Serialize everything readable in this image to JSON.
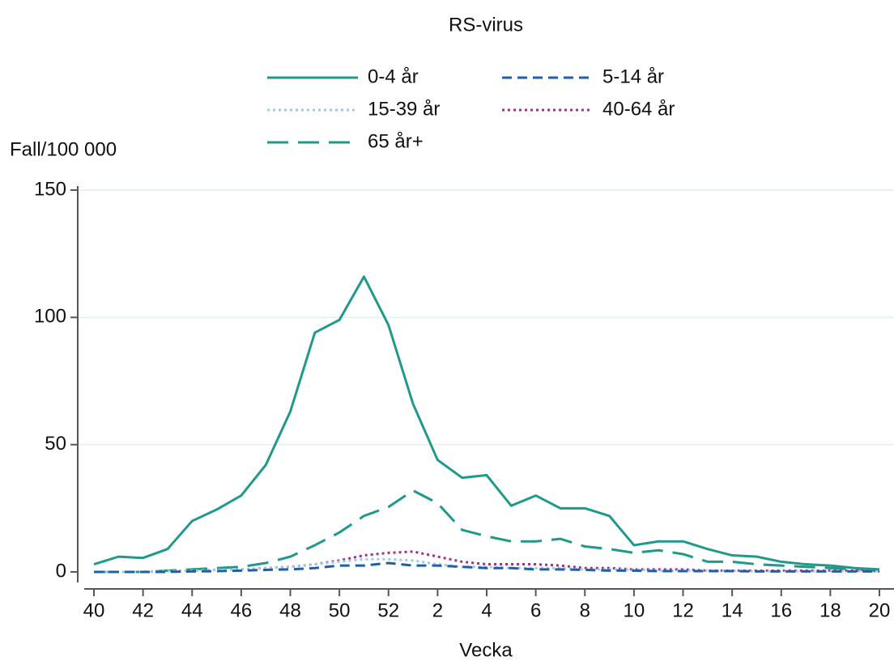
{
  "chart_data": {
    "type": "line",
    "title": "RS-virus",
    "y_label": "Fall/100 000",
    "x_label": "Vecka",
    "categories": [
      "40",
      null,
      "42",
      null,
      "44",
      null,
      "46",
      null,
      "48",
      null,
      "50",
      null,
      "52",
      null,
      "2",
      null,
      "4",
      null,
      "6",
      null,
      "8",
      null,
      "10",
      null,
      "12",
      null,
      "14",
      null,
      "16",
      null,
      "18",
      null,
      "20"
    ],
    "series": [
      {
        "name": "0-4 år",
        "color": "#1f9a8a",
        "line_style": "solid",
        "values": [
          3,
          6,
          5.5,
          9,
          20,
          24.5,
          30,
          42,
          63,
          94,
          99,
          116,
          97,
          66,
          44,
          37,
          38,
          26,
          30,
          25,
          25,
          22,
          10.5,
          12,
          12,
          9,
          6.5,
          6,
          4,
          3,
          2.5,
          1.5,
          1
        ]
      },
      {
        "name": "5-14 år",
        "color": "#1f5fa8",
        "line_style": "dashed",
        "values": [
          0,
          0,
          0,
          0,
          0.2,
          0.3,
          0.5,
          0.8,
          1,
          1.5,
          2.5,
          2.5,
          3.5,
          2.5,
          2.5,
          2,
          1.5,
          1.5,
          1,
          1,
          0.8,
          0.5,
          0.5,
          0.3,
          0.3,
          0.3,
          0.3,
          0.2,
          0.2,
          0.2,
          0.2,
          0.2,
          0.2
        ]
      },
      {
        "name": "15-39 år",
        "color": "#9ecae1",
        "line_style": "dotted",
        "values": [
          0,
          0,
          0,
          0.3,
          0.5,
          0.8,
          1,
          1.5,
          2,
          3,
          4,
          5,
          5,
          4.5,
          3,
          2,
          2,
          1.5,
          1.5,
          1.5,
          1,
          1,
          1,
          0.5,
          0.5,
          0.5,
          0.5,
          0.3,
          0.3,
          0.3,
          0.3,
          0.3,
          0.3
        ]
      },
      {
        "name": "40-64 år",
        "color": "#a0308f",
        "line_style": "dotted",
        "values": [
          0,
          0,
          0,
          0.3,
          0.5,
          0.8,
          1,
          1.5,
          2,
          3,
          4.5,
          6.5,
          7.5,
          8,
          6,
          4,
          3,
          3,
          3,
          2.5,
          1.5,
          1.5,
          1,
          1,
          1,
          0.5,
          0.5,
          0.5,
          0.5,
          0.5,
          0.5,
          0.5,
          0.3
        ]
      },
      {
        "name": "65 år+",
        "color": "#1f9a8a",
        "line_style": "longdash",
        "values": [
          0,
          0,
          0,
          0.5,
          1,
          1.5,
          2,
          3.5,
          6,
          10.5,
          15.5,
          22,
          25.5,
          32,
          27,
          16.5,
          14,
          12,
          12,
          13,
          10,
          9,
          7.5,
          8.5,
          7,
          4,
          4,
          3,
          2.5,
          2,
          1.5,
          1,
          0.5
        ]
      }
    ],
    "ylim": [
      0,
      150
    ],
    "yticks": [
      0,
      50,
      100,
      150
    ],
    "grid": true
  }
}
